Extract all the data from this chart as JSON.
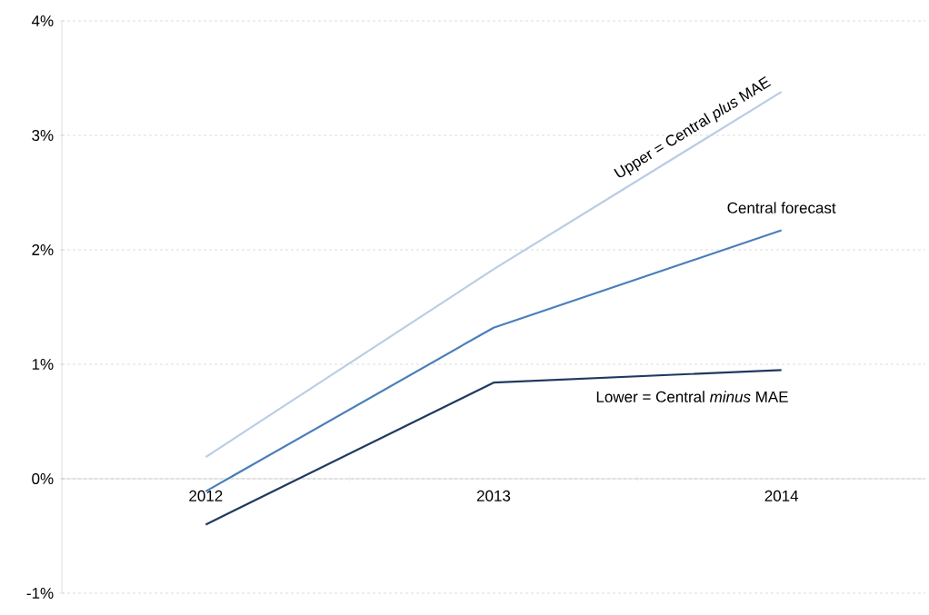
{
  "chart_data": {
    "type": "line",
    "categories": [
      "2012",
      "2013",
      "2014"
    ],
    "series": [
      {
        "name": "Upper = Central *plus* MAE",
        "color": "#b9cde5",
        "values": [
          0.19,
          1.83,
          3.38
        ]
      },
      {
        "name": "Central forecast",
        "color": "#4a7ebb",
        "values": [
          -0.11,
          1.32,
          2.17
        ]
      },
      {
        "name": "Lower = Central *minus* MAE",
        "color": "#1f3a60",
        "values": [
          -0.4,
          0.84,
          0.95
        ]
      }
    ],
    "ylim": [
      -1,
      4
    ],
    "yticks": [
      {
        "value": -1,
        "label": "-1%"
      },
      {
        "value": 0,
        "label": "0%"
      },
      {
        "value": 1,
        "label": "1%"
      },
      {
        "value": 2,
        "label": "2%"
      },
      {
        "value": 3,
        "label": "3%"
      },
      {
        "value": 4,
        "label": "4%"
      }
    ],
    "grid": "y",
    "marker": "none",
    "line_style": "solid"
  }
}
